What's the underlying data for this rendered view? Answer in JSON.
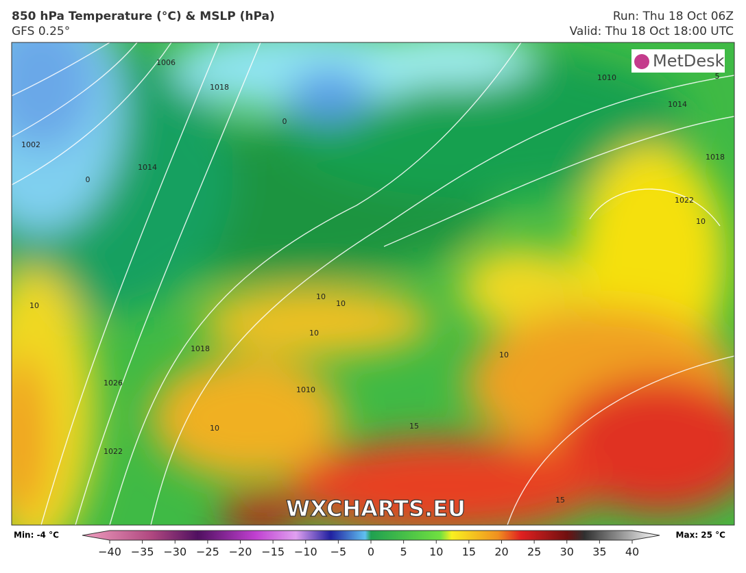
{
  "header": {
    "title": "850 hPa Temperature (°C) & MSLP (hPa)",
    "subtitle": "GFS 0.25°",
    "run": "Run: Thu 18 Oct 06Z",
    "valid": "Valid: Thu 18 Oct 18:00 UTC"
  },
  "map": {
    "logo": "MetDesk",
    "watermark": "WXCHARTS.EU",
    "labels": [
      "1006",
      "1018",
      "1002",
      "1014",
      "0",
      "0",
      "1010",
      "1014",
      "1018",
      "1022",
      "10",
      "10",
      "10",
      "10",
      "10",
      "10",
      "1018",
      "1026",
      "1022",
      "10",
      "15",
      "15",
      "5",
      "1010"
    ]
  },
  "colorbar": {
    "min_label": "Min: -4 °C",
    "max_label": "Max: 25 °C",
    "ticks": [
      {
        "value": -40,
        "label": "−40"
      },
      {
        "value": -35,
        "label": "−35"
      },
      {
        "value": -30,
        "label": "−30"
      },
      {
        "value": -25,
        "label": "−25"
      },
      {
        "value": -20,
        "label": "−20"
      },
      {
        "value": -15,
        "label": "−15"
      },
      {
        "value": -10,
        "label": "−10"
      },
      {
        "value": -5,
        "label": "−5"
      },
      0,
      5,
      10,
      15,
      20,
      25,
      30,
      35,
      40
    ]
  }
}
